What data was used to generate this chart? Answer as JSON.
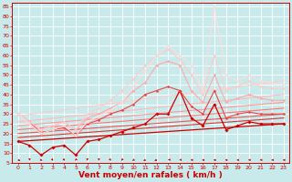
{
  "background_color": "#c8eaea",
  "grid_color": "#ffffff",
  "xlabel": "Vent moyen/en rafales ( km/h )",
  "xlabel_color": "#cc0000",
  "xlabel_fontsize": 6.5,
  "tick_fontsize": 4.5,
  "xtick_color": "#cc0000",
  "ytick_color": "#cc0000",
  "xlim": [
    -0.5,
    23.5
  ],
  "ylim": [
    5,
    87
  ],
  "yticks": [
    5,
    10,
    15,
    20,
    25,
    30,
    35,
    40,
    45,
    50,
    55,
    60,
    65,
    70,
    75,
    80,
    85
  ],
  "xticks": [
    0,
    1,
    2,
    3,
    4,
    5,
    6,
    7,
    8,
    9,
    10,
    11,
    12,
    13,
    14,
    15,
    16,
    17,
    18,
    19,
    20,
    21,
    22,
    23
  ],
  "lines": [
    {
      "x": [
        0,
        1,
        2,
        3,
        4,
        5,
        6,
        7,
        8,
        9,
        10,
        11,
        12,
        13,
        14,
        15,
        16,
        17,
        18,
        19,
        20,
        21,
        22,
        23
      ],
      "y": [
        16,
        14,
        9,
        13,
        14,
        9,
        16,
        17,
        19,
        21,
        23,
        25,
        30,
        30,
        42,
        28,
        24,
        35,
        22,
        24,
        26,
        25,
        25,
        25
      ],
      "color": "#cc0000",
      "lw": 0.9,
      "marker": "D",
      "ms": 1.8
    },
    {
      "x": [
        0,
        1,
        2,
        3,
        4,
        5,
        6,
        7,
        8,
        9,
        10,
        11,
        12,
        13,
        14,
        15,
        16,
        17,
        18,
        19,
        20,
        21,
        22,
        23
      ],
      "y": [
        30,
        26,
        20,
        22,
        23,
        19,
        25,
        27,
        30,
        32,
        35,
        40,
        42,
        44,
        42,
        34,
        30,
        42,
        28,
        30,
        31,
        30,
        30,
        30
      ],
      "color": "#ee4444",
      "lw": 0.8,
      "marker": "D",
      "ms": 1.5
    },
    {
      "x": [
        0,
        1,
        2,
        3,
        4,
        5,
        6,
        7,
        8,
        9,
        10,
        11,
        12,
        13,
        14,
        15,
        16,
        17,
        18,
        19,
        20,
        21,
        22,
        23
      ],
      "y": [
        30,
        26,
        22,
        24,
        26,
        22,
        28,
        30,
        33,
        36,
        42,
        46,
        55,
        57,
        55,
        42,
        36,
        50,
        36,
        38,
        40,
        38,
        37,
        37
      ],
      "color": "#ffaaaa",
      "lw": 0.8,
      "marker": "D",
      "ms": 1.5
    },
    {
      "x": [
        0,
        1,
        2,
        3,
        4,
        5,
        6,
        7,
        8,
        9,
        10,
        11,
        12,
        13,
        14,
        15,
        16,
        17,
        18,
        19,
        20,
        21,
        22,
        23
      ],
      "y": [
        30,
        26,
        22,
        24,
        26,
        22,
        30,
        33,
        37,
        42,
        48,
        55,
        60,
        63,
        58,
        50,
        40,
        60,
        42,
        44,
        47,
        44,
        43,
        43
      ],
      "color": "#ffcccc",
      "lw": 0.8,
      "marker": "D",
      "ms": 1.5
    },
    {
      "x": [
        0,
        1,
        2,
        3,
        4,
        5,
        6,
        7,
        8,
        9,
        10,
        11,
        12,
        13,
        14,
        15,
        16,
        17,
        18,
        19,
        20,
        21,
        22,
        23
      ],
      "y": [
        30,
        25,
        20,
        22,
        24,
        19,
        26,
        29,
        32,
        36,
        44,
        52,
        60,
        65,
        60,
        55,
        42,
        85,
        50,
        47,
        50,
        47,
        46,
        45
      ],
      "color": "#ffdddd",
      "lw": 0.8,
      "marker": "D",
      "ms": 1.5
    },
    {
      "x": [
        0,
        23
      ],
      "y": [
        16,
        25
      ],
      "color": "#cc0000",
      "lw": 0.9,
      "marker": null,
      "ms": 0
    },
    {
      "x": [
        0,
        23
      ],
      "y": [
        18,
        28
      ],
      "color": "#dd3333",
      "lw": 0.8,
      "marker": null,
      "ms": 0
    },
    {
      "x": [
        0,
        23
      ],
      "y": [
        20,
        30
      ],
      "color": "#ee5555",
      "lw": 0.8,
      "marker": null,
      "ms": 0
    },
    {
      "x": [
        0,
        23
      ],
      "y": [
        22,
        33
      ],
      "color": "#ff7777",
      "lw": 0.8,
      "marker": null,
      "ms": 0
    },
    {
      "x": [
        0,
        23
      ],
      "y": [
        24,
        36
      ],
      "color": "#ff9999",
      "lw": 0.8,
      "marker": null,
      "ms": 0
    },
    {
      "x": [
        0,
        23
      ],
      "y": [
        26,
        40
      ],
      "color": "#ffbbbb",
      "lw": 0.8,
      "marker": null,
      "ms": 0
    },
    {
      "x": [
        0,
        23
      ],
      "y": [
        29,
        47
      ],
      "color": "#ffcccc",
      "lw": 0.8,
      "marker": null,
      "ms": 0
    }
  ],
  "wind_directions": [
    45,
    0,
    20,
    10,
    10,
    350,
    0,
    0,
    10,
    350,
    340,
    330,
    320,
    310,
    300,
    290,
    280,
    270,
    260,
    270,
    280,
    290,
    280,
    270
  ]
}
